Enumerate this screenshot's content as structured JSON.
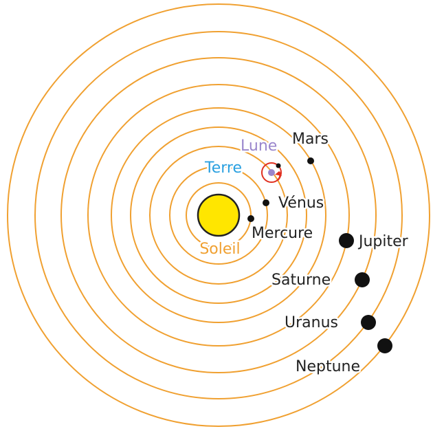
{
  "sun": "Soleil",
  "moon": "Lune",
  "planets": [
    {
      "label": "Mercure"
    },
    {
      "label": "Vénus"
    },
    {
      "label": "Terre"
    },
    {
      "label": "Mars"
    },
    {
      "label": "Jupiter"
    },
    {
      "label": "Saturne"
    },
    {
      "label": "Uranus"
    },
    {
      "label": "Neptune"
    }
  ]
}
